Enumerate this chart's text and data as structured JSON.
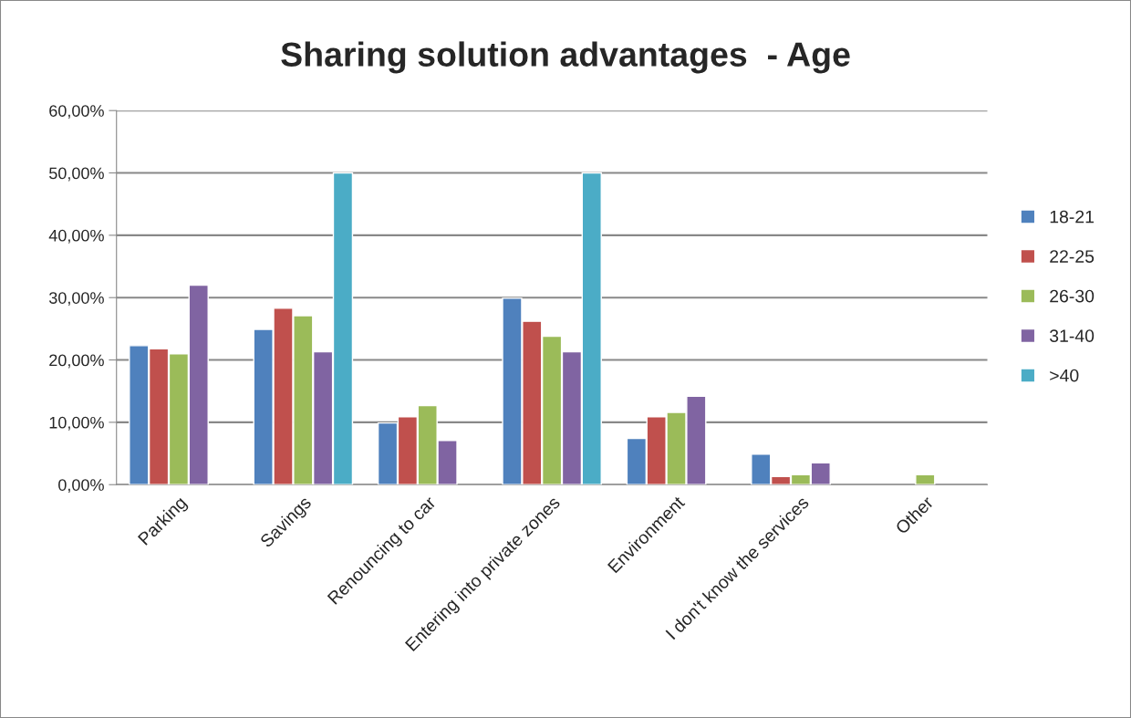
{
  "chart_data": {
    "type": "bar",
    "title": "Sharing solution advantages  - Age",
    "categories": [
      "Parking",
      "Savings",
      "Renouncing to car",
      "Entering into private zones",
      "Environment",
      "I don't know the services",
      "Other"
    ],
    "series": [
      {
        "name": "18-21",
        "color": "#4f81bd",
        "values": [
          22.3,
          24.9,
          9.9,
          29.9,
          7.4,
          4.9,
          null
        ]
      },
      {
        "name": "22-25",
        "color": "#c0504d",
        "values": [
          21.8,
          28.3,
          10.9,
          26.2,
          10.9,
          1.3,
          null
        ]
      },
      {
        "name": "26-30",
        "color": "#9bbb59",
        "values": [
          21.0,
          27.1,
          12.7,
          23.8,
          11.6,
          1.6,
          1.6
        ]
      },
      {
        "name": "31-40",
        "color": "#8064a2",
        "values": [
          32.0,
          21.3,
          7.1,
          21.3,
          14.2,
          3.5,
          null
        ]
      },
      {
        "name": ">40",
        "color": "#4bacc6",
        "values": [
          null,
          50.0,
          null,
          50.0,
          null,
          null,
          null
        ]
      }
    ],
    "ylim": [
      0,
      60
    ],
    "yticks": [
      {
        "value": 0,
        "label": "0,00%"
      },
      {
        "value": 10,
        "label": "10,00%"
      },
      {
        "value": 20,
        "label": "20,00%"
      },
      {
        "value": 30,
        "label": "30,00%"
      },
      {
        "value": 40,
        "label": "40,00%"
      },
      {
        "value": 50,
        "label": "50,00%"
      },
      {
        "value": 60,
        "label": "60,00%"
      }
    ],
    "grid": "y",
    "legend": "right"
  }
}
